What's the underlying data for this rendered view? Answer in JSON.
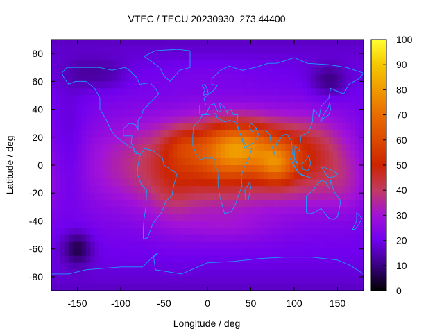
{
  "chart_data": {
    "type": "heatmap",
    "title": "VTEC / TECU 20230930_273.44400",
    "xlabel": "Longitude / deg",
    "ylabel": "Latitude / deg",
    "xlim": [
      -180,
      180
    ],
    "ylim": [
      -90,
      90
    ],
    "x_ticks": [
      -150,
      -100,
      -50,
      0,
      50,
      100,
      150
    ],
    "y_ticks": [
      -80,
      -60,
      -40,
      -20,
      0,
      20,
      40,
      60,
      80
    ],
    "colorbar": {
      "min": 0,
      "max": 100,
      "ticks": [
        0,
        10,
        20,
        30,
        40,
        50,
        60,
        70,
        80,
        90,
        100
      ],
      "stops": [
        [
          0,
          "#000000"
        ],
        [
          10,
          "#3a0080"
        ],
        [
          20,
          "#7000ee"
        ],
        [
          30,
          "#a212d8"
        ],
        [
          40,
          "#c23a62"
        ],
        [
          50,
          "#cc2400"
        ],
        [
          60,
          "#dc4a00"
        ],
        [
          70,
          "#e86c00"
        ],
        [
          80,
          "#f09a00"
        ],
        [
          90,
          "#f5c800"
        ],
        [
          100,
          "#ffff33"
        ]
      ]
    },
    "field_features": [
      {
        "lon": 0,
        "lat": 0,
        "sigma_lon": 80,
        "sigma_lat": 22,
        "amp": 28
      },
      {
        "lon": 30,
        "lat": 12,
        "sigma_lon": 28,
        "sigma_lat": 14,
        "amp": 26
      },
      {
        "lon": 80,
        "lat": 0,
        "sigma_lon": 15,
        "sigma_lat": 10,
        "amp": 22
      },
      {
        "lon": 60,
        "lat": 15,
        "sigma_lon": 40,
        "sigma_lat": 13,
        "amp": 14
      },
      {
        "lon": 120,
        "lat": 5,
        "sigma_lon": 30,
        "sigma_lat": 20,
        "amp": 15
      },
      {
        "lon": -30,
        "lat": 15,
        "sigma_lon": 15,
        "sigma_lat": 9,
        "amp": 10
      },
      {
        "lon": -40,
        "lat": -20,
        "sigma_lon": 18,
        "sigma_lat": 18,
        "amp": 6
      },
      {
        "lon": 20,
        "lat": -45,
        "sigma_lon": 40,
        "sigma_lat": 8,
        "amp": 5
      },
      {
        "lon": 160,
        "lat": -15,
        "sigma_lon": 18,
        "sigma_lat": 15,
        "amp": 6
      },
      {
        "lon": 0,
        "lat": 65,
        "sigma_lon": 40,
        "sigma_lat": 7,
        "amp": 2
      },
      {
        "lon": -150,
        "lat": -60,
        "sigma_lon": 12,
        "sigma_lat": 8,
        "amp": -14
      },
      {
        "lon": -160,
        "lat": 10,
        "sigma_lon": 15,
        "sigma_lat": 30,
        "amp": -6
      },
      {
        "lon": 140,
        "lat": 60,
        "sigma_lon": 15,
        "sigma_lat": 8,
        "amp": -10
      },
      {
        "lon": -120,
        "lat": 65,
        "sigma_lon": 18,
        "sigma_lat": 8,
        "amp": -6
      },
      {
        "lon": -150,
        "lat": 65,
        "sigma_lon": 15,
        "sigma_lat": 8,
        "amp": -4
      }
    ],
    "background_vtec": 22,
    "grid": false,
    "coastline_color": "#1a9fff"
  }
}
